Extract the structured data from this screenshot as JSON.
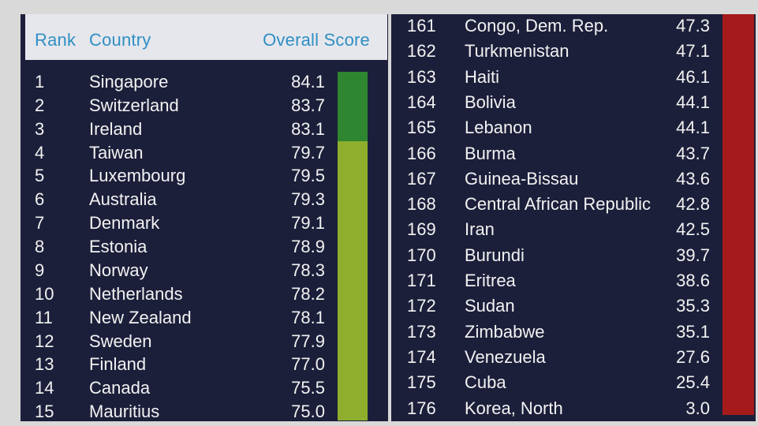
{
  "chart_data": {
    "type": "table",
    "columns": [
      "Rank",
      "Country",
      "Overall Score"
    ],
    "colors": {
      "tier_top": "#2e8631",
      "tier_high": "#8fae2e",
      "tier_low": "#a51b1b",
      "header_text": "#2f8fc3",
      "background": "#1c1f3a"
    },
    "top_rows": [
      {
        "rank": "1",
        "country": "Singapore",
        "score": 84.1,
        "tier": "tier_top"
      },
      {
        "rank": "2",
        "country": "Switzerland",
        "score": 83.7,
        "tier": "tier_top"
      },
      {
        "rank": "3",
        "country": "Ireland",
        "score": 83.1,
        "tier": "tier_top"
      },
      {
        "rank": "4",
        "country": "Taiwan",
        "score": 79.7,
        "tier": "tier_high"
      },
      {
        "rank": "5",
        "country": "Luxembourg",
        "score": 79.5,
        "tier": "tier_high"
      },
      {
        "rank": "6",
        "country": "Australia",
        "score": 79.3,
        "tier": "tier_high"
      },
      {
        "rank": "7",
        "country": "Denmark",
        "score": 79.1,
        "tier": "tier_high"
      },
      {
        "rank": "8",
        "country": "Estonia",
        "score": 78.9,
        "tier": "tier_high"
      },
      {
        "rank": "9",
        "country": "Norway",
        "score": 78.3,
        "tier": "tier_high"
      },
      {
        "rank": "10",
        "country": "Netherlands",
        "score": 78.2,
        "tier": "tier_high"
      },
      {
        "rank": "11",
        "country": "New Zealand",
        "score": 78.1,
        "tier": "tier_high"
      },
      {
        "rank": "12",
        "country": "Sweden",
        "score": 77.9,
        "tier": "tier_high"
      },
      {
        "rank": "13",
        "country": "Finland",
        "score": 77.0,
        "tier": "tier_high"
      },
      {
        "rank": "14",
        "country": "Canada",
        "score": 75.5,
        "tier": "tier_high"
      },
      {
        "rank": "15",
        "country": "Mauritius",
        "score": 75.0,
        "tier": "tier_high"
      }
    ],
    "bottom_rows": [
      {
        "rank": "161",
        "country": "Congo, Dem. Rep.",
        "score": 47.3,
        "tier": "tier_low"
      },
      {
        "rank": "162",
        "country": "Turkmenistan",
        "score": 47.1,
        "tier": "tier_low"
      },
      {
        "rank": "163",
        "country": "Haiti",
        "score": 46.1,
        "tier": "tier_low"
      },
      {
        "rank": "164",
        "country": "Bolivia",
        "score": 44.1,
        "tier": "tier_low"
      },
      {
        "rank": "165",
        "country": "Lebanon",
        "score": 44.1,
        "tier": "tier_low"
      },
      {
        "rank": "166",
        "country": "Burma",
        "score": 43.7,
        "tier": "tier_low"
      },
      {
        "rank": "167",
        "country": "Guinea-Bissau",
        "score": 43.6,
        "tier": "tier_low"
      },
      {
        "rank": "168",
        "country": "Central African Republic",
        "score": 42.8,
        "tier": "tier_low"
      },
      {
        "rank": "169",
        "country": "Iran",
        "score": 42.5,
        "tier": "tier_low"
      },
      {
        "rank": "170",
        "country": "Burundi",
        "score": 39.7,
        "tier": "tier_low"
      },
      {
        "rank": "171",
        "country": "Eritrea",
        "score": 38.6,
        "tier": "tier_low"
      },
      {
        "rank": "172",
        "country": "Sudan",
        "score": 35.3,
        "tier": "tier_low"
      },
      {
        "rank": "173",
        "country": "Zimbabwe",
        "score": 35.1,
        "tier": "tier_low"
      },
      {
        "rank": "174",
        "country": "Venezuela",
        "score": 27.6,
        "tier": "tier_low"
      },
      {
        "rank": "175",
        "country": "Cuba",
        "score": 25.4,
        "tier": "tier_low"
      },
      {
        "rank": "176",
        "country": "Korea, North",
        "score": 3.0,
        "tier": "tier_low"
      }
    ]
  }
}
